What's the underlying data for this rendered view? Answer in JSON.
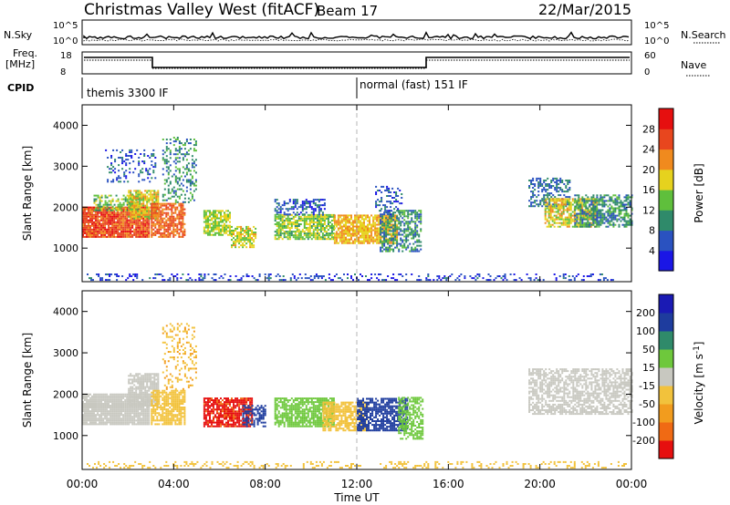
{
  "header": {
    "title": "Christmas Valley West (fitACF)",
    "beam": "Beam 17",
    "date": "22/Mar/2015"
  },
  "noise_panel": {
    "left_label": "N.Sky",
    "left_ticks": [
      "10^5",
      "10^0"
    ],
    "right_label": "N.Search",
    "right_ticks": [
      "10^5",
      "10^0"
    ]
  },
  "freq_panel": {
    "left_label_1": "Freq.",
    "left_label_2": "[MHz]",
    "left_ticks": [
      "18",
      "8"
    ],
    "right_label": "Nave",
    "right_ticks": [
      "60",
      "0"
    ]
  },
  "cpid_panel": {
    "label": "CPID",
    "segments": [
      {
        "name": "themis 3300 IF",
        "start_hour": 0
      },
      {
        "name": "normal (fast) 151 IF",
        "start_hour": 12
      }
    ]
  },
  "x_axis": {
    "label": "Time UT",
    "ticks": [
      "00:00",
      "04:00",
      "08:00",
      "12:00",
      "16:00",
      "20:00",
      "00:00"
    ],
    "range_hours": [
      0,
      24
    ]
  },
  "colors": {
    "power": [
      "#1a16e6",
      "#2a52c0",
      "#2f8a6a",
      "#5fbf3c",
      "#e6d21e",
      "#f08a1e",
      "#e8461e",
      "#e60f0f"
    ],
    "velocity": [
      "#e60f0f",
      "#f06a14",
      "#f29c1e",
      "#f2c23c",
      "#c8c8c0",
      "#6ec83c",
      "#2f8a6a",
      "#1e3c9e",
      "#1a1ab4"
    ]
  },
  "chart_data": [
    {
      "type": "heatmap",
      "title": "",
      "xlabel": "",
      "ylabel": "Slant Range [km]",
      "xlim": [
        0,
        24
      ],
      "ylim": [
        180,
        4500
      ],
      "y_ticks": [
        1000,
        2000,
        3000,
        4000
      ],
      "colorbar": {
        "label": "Power [dB]",
        "ticks": [
          "4",
          "8",
          "12",
          "16",
          "20",
          "24",
          "28"
        ],
        "range": [
          0,
          32
        ]
      },
      "regions": [
        {
          "t0": 0.0,
          "t1": 2.9,
          "r0": 1250,
          "r1": 2000,
          "power": 26,
          "density": 0.95
        },
        {
          "t0": 0.5,
          "t1": 2.5,
          "r0": 1900,
          "r1": 2300,
          "power": 14,
          "density": 0.6
        },
        {
          "t0": 2.0,
          "t1": 3.3,
          "r0": 1700,
          "r1": 2400,
          "power": 18,
          "density": 0.8
        },
        {
          "t0": 3.0,
          "t1": 4.5,
          "r0": 1250,
          "r1": 2100,
          "power": 24,
          "density": 0.8
        },
        {
          "t0": 3.5,
          "t1": 5.0,
          "r0": 2100,
          "r1": 3700,
          "power": 10,
          "density": 0.3
        },
        {
          "t0": 1.0,
          "t1": 3.2,
          "r0": 2600,
          "r1": 3400,
          "power": 6,
          "density": 0.2
        },
        {
          "t0": 5.3,
          "t1": 6.5,
          "r0": 1300,
          "r1": 1900,
          "power": 16,
          "density": 0.75
        },
        {
          "t0": 6.5,
          "t1": 7.6,
          "r0": 1000,
          "r1": 1500,
          "power": 17,
          "density": 0.7
        },
        {
          "t0": 8.4,
          "t1": 11.0,
          "r0": 1200,
          "r1": 1800,
          "power": 15,
          "density": 0.75
        },
        {
          "t0": 8.4,
          "t1": 10.6,
          "r0": 1800,
          "r1": 2200,
          "power": 6,
          "density": 0.5
        },
        {
          "t0": 11.0,
          "t1": 13.8,
          "r0": 1100,
          "r1": 1800,
          "power": 20,
          "density": 0.8
        },
        {
          "t0": 13.0,
          "t1": 14.8,
          "r0": 900,
          "r1": 1900,
          "power": 10,
          "density": 0.6
        },
        {
          "t0": 12.8,
          "t1": 14.0,
          "r0": 1800,
          "r1": 2500,
          "power": 6,
          "density": 0.35
        },
        {
          "t0": 19.5,
          "t1": 21.3,
          "r0": 2000,
          "r1": 2700,
          "power": 8,
          "density": 0.45
        },
        {
          "t0": 20.2,
          "t1": 22.5,
          "r0": 1500,
          "r1": 2200,
          "power": 18,
          "density": 0.7
        },
        {
          "t0": 21.5,
          "t1": 24.0,
          "r0": 1500,
          "r1": 2300,
          "power": 10,
          "density": 0.6
        },
        {
          "t0": 0.2,
          "t1": 24.0,
          "r0": 200,
          "r1": 380,
          "power": 5,
          "density": 0.25
        }
      ]
    },
    {
      "type": "heatmap",
      "title": "",
      "xlabel": "Time UT",
      "ylabel": "Slant Range [km]",
      "xlim": [
        0,
        24
      ],
      "ylim": [
        180,
        4500
      ],
      "y_ticks": [
        1000,
        2000,
        3000,
        4000
      ],
      "colorbar": {
        "label": "Velocity [m s^-1]",
        "ticks": [
          "-200",
          "-100",
          "-50",
          "-15",
          "15",
          "50",
          "100",
          "200"
        ],
        "range": [
          -250,
          250
        ]
      },
      "regions": [
        {
          "t0": 0.0,
          "t1": 2.9,
          "r0": 1250,
          "r1": 2000,
          "velocity": 0,
          "density": 0.95
        },
        {
          "t0": 2.0,
          "t1": 3.3,
          "r0": 1700,
          "r1": 2500,
          "velocity": 0,
          "density": 0.8
        },
        {
          "t0": 3.0,
          "t1": 4.5,
          "r0": 1250,
          "r1": 2100,
          "velocity": -60,
          "density": 0.8
        },
        {
          "t0": 3.5,
          "t1": 5.0,
          "r0": 2100,
          "r1": 3700,
          "velocity": -80,
          "density": 0.25
        },
        {
          "t0": 5.3,
          "t1": 7.4,
          "r0": 1200,
          "r1": 1900,
          "velocity": -200,
          "density": 0.8
        },
        {
          "t0": 7.0,
          "t1": 8.0,
          "r0": 1200,
          "r1": 1700,
          "velocity": 150,
          "density": 0.5
        },
        {
          "t0": 8.4,
          "t1": 11.0,
          "r0": 1200,
          "r1": 1900,
          "velocity": 40,
          "density": 0.75
        },
        {
          "t0": 10.5,
          "t1": 12.5,
          "r0": 1100,
          "r1": 1800,
          "velocity": -40,
          "density": 0.75
        },
        {
          "t0": 12.0,
          "t1": 14.2,
          "r0": 1100,
          "r1": 1900,
          "velocity": 150,
          "density": 0.75
        },
        {
          "t0": 13.8,
          "t1": 14.9,
          "r0": 900,
          "r1": 1900,
          "velocity": 40,
          "density": 0.6
        },
        {
          "t0": 19.5,
          "t1": 24.0,
          "r0": 1500,
          "r1": 2600,
          "velocity": 0,
          "density": 0.65
        },
        {
          "t0": 0.2,
          "t1": 24.0,
          "r0": 200,
          "r1": 380,
          "velocity": -40,
          "density": 0.25
        }
      ]
    }
  ]
}
